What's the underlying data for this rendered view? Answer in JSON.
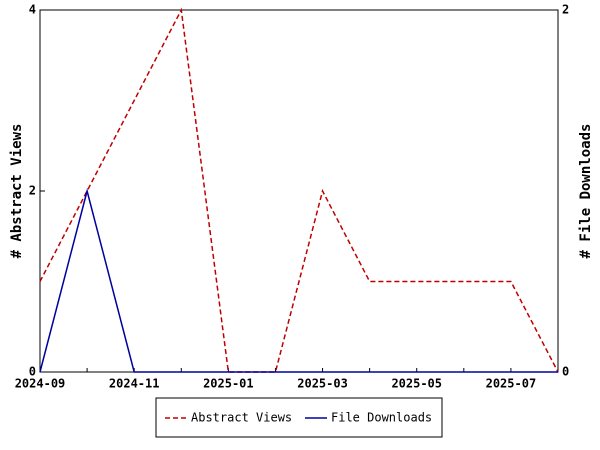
{
  "chart_data": {
    "type": "line",
    "categories": [
      "2024-09",
      null,
      "2024-11",
      null,
      "2025-01",
      null,
      "2025-03",
      null,
      "2025-05",
      null,
      "2025-07",
      null
    ],
    "ylabel": "# Abstract Views",
    "y2label": "# File Downloads",
    "ylim": [
      0,
      4
    ],
    "yticks": [
      0,
      2,
      4
    ],
    "y2lim": [
      0,
      2
    ],
    "y2ticks": [
      0,
      2
    ],
    "legend": "bottom",
    "series": [
      {
        "name": "Abstract Views",
        "color": "#c00000",
        "dashed": true,
        "values": [
          1,
          2,
          3,
          4,
          0,
          0,
          2,
          1,
          1,
          1,
          1,
          0
        ]
      },
      {
        "name": "File Downloads",
        "color": "#0000a0",
        "dashed": false,
        "axis": "y2",
        "values": [
          0,
          1,
          0,
          0,
          0,
          0,
          0,
          0,
          0,
          0,
          0,
          0
        ]
      }
    ]
  }
}
